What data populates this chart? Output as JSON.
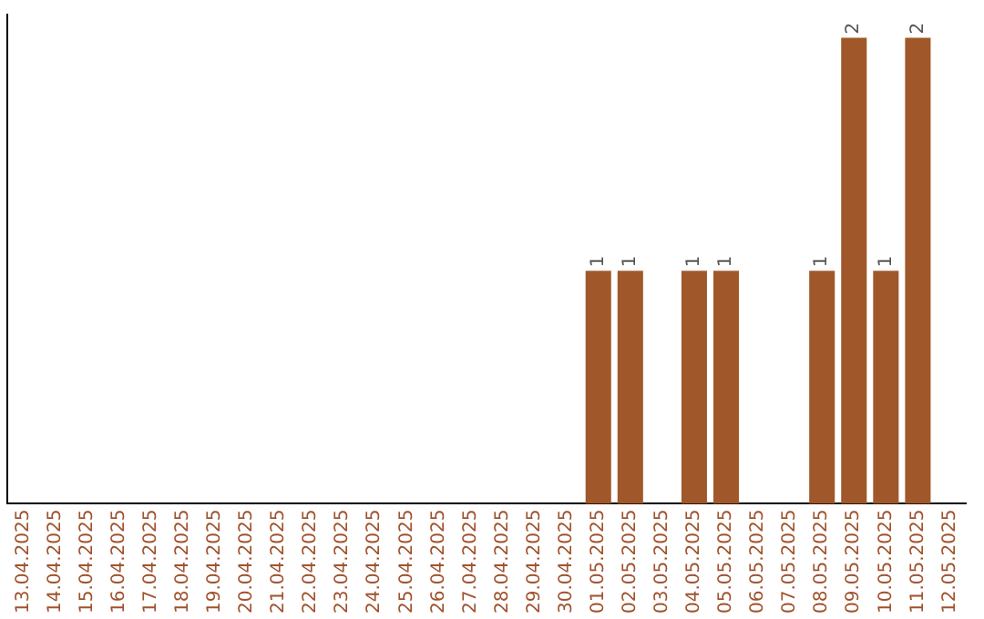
{
  "chart_data": {
    "type": "bar",
    "categories": [
      "13.04.2025",
      "14.04.2025",
      "15.04.2025",
      "16.04.2025",
      "17.04.2025",
      "18.04.2025",
      "19.04.2025",
      "20.04.2025",
      "21.04.2025",
      "22.04.2025",
      "23.04.2025",
      "24.04.2025",
      "25.04.2025",
      "26.04.2025",
      "27.04.2025",
      "28.04.2025",
      "29.04.2025",
      "30.04.2025",
      "01.05.2025",
      "02.05.2025",
      "03.05.2025",
      "04.05.2025",
      "05.05.2025",
      "06.05.2025",
      "07.05.2025",
      "08.05.2025",
      "09.05.2025",
      "10.05.2025",
      "11.05.2025",
      "12.05.2025"
    ],
    "values": [
      null,
      null,
      null,
      null,
      null,
      null,
      null,
      null,
      null,
      null,
      null,
      null,
      null,
      null,
      null,
      null,
      null,
      null,
      1,
      1,
      null,
      1,
      1,
      null,
      null,
      1,
      2,
      1,
      2,
      null
    ],
    "data_labels": true,
    "color": "#a0582a",
    "ylim": [
      0,
      2.1
    ],
    "tick_labels": "x",
    "grid": false,
    "legend": false
  }
}
